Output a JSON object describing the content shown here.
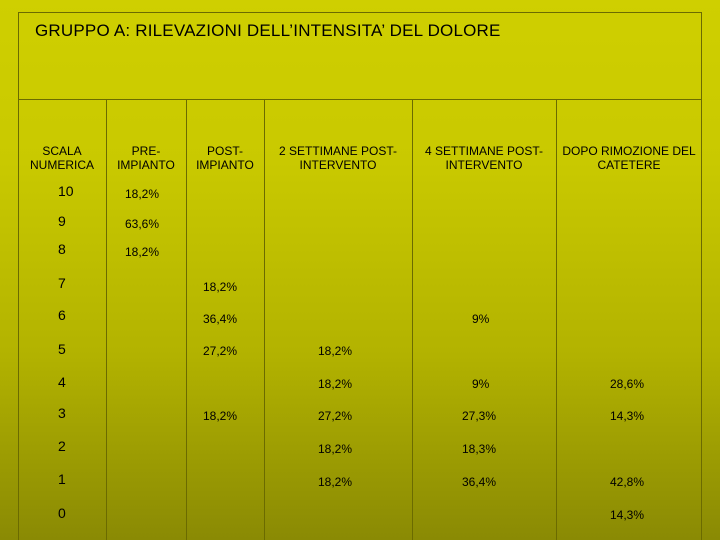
{
  "title": "GRUPPO A: RILEVAZIONI DELL’INTENSITA’ DEL DOLORE",
  "columns": [
    {
      "line1": "SCALA",
      "line2": "NUMERICA"
    },
    {
      "line1": "PRE-",
      "line2": "IMPIANTO"
    },
    {
      "line1": "POST-",
      "line2": "IMPIANTO"
    },
    {
      "line1": "2 SETTIMANE POST-",
      "line2": "INTERVENTO"
    },
    {
      "line1": "4 SETTIMANE POST-",
      "line2": "INTERVENTO"
    },
    {
      "line1": "DOPO RIMOZIONE DEL",
      "line2": "CATETERE"
    }
  ],
  "scores": [
    "10",
    "9",
    "8",
    "7",
    "6",
    "5",
    "4",
    "3",
    "2",
    "1",
    "0"
  ],
  "cells": {
    "pre_10": "18,2%",
    "pre_9": "63,6%",
    "pre_8": "18,2%",
    "post_7": "18,2%",
    "post_6": "36,4%",
    "post_5": "27,2%",
    "post_3": "18,2%",
    "w2_5": "18,2%",
    "w2_4": "18,2%",
    "w2_3": "27,2%",
    "w2_2": "18,2%",
    "w2_1": "18,2%",
    "w4_6": "9%",
    "w4_4": "9%",
    "w4_3": "27,3%",
    "w4_2": "18,3%",
    "w4_1": "36,4%",
    "rm_4": "28,6%",
    "rm_3": "14,3%",
    "rm_1": "42,8%",
    "rm_0": "14,3%"
  }
}
